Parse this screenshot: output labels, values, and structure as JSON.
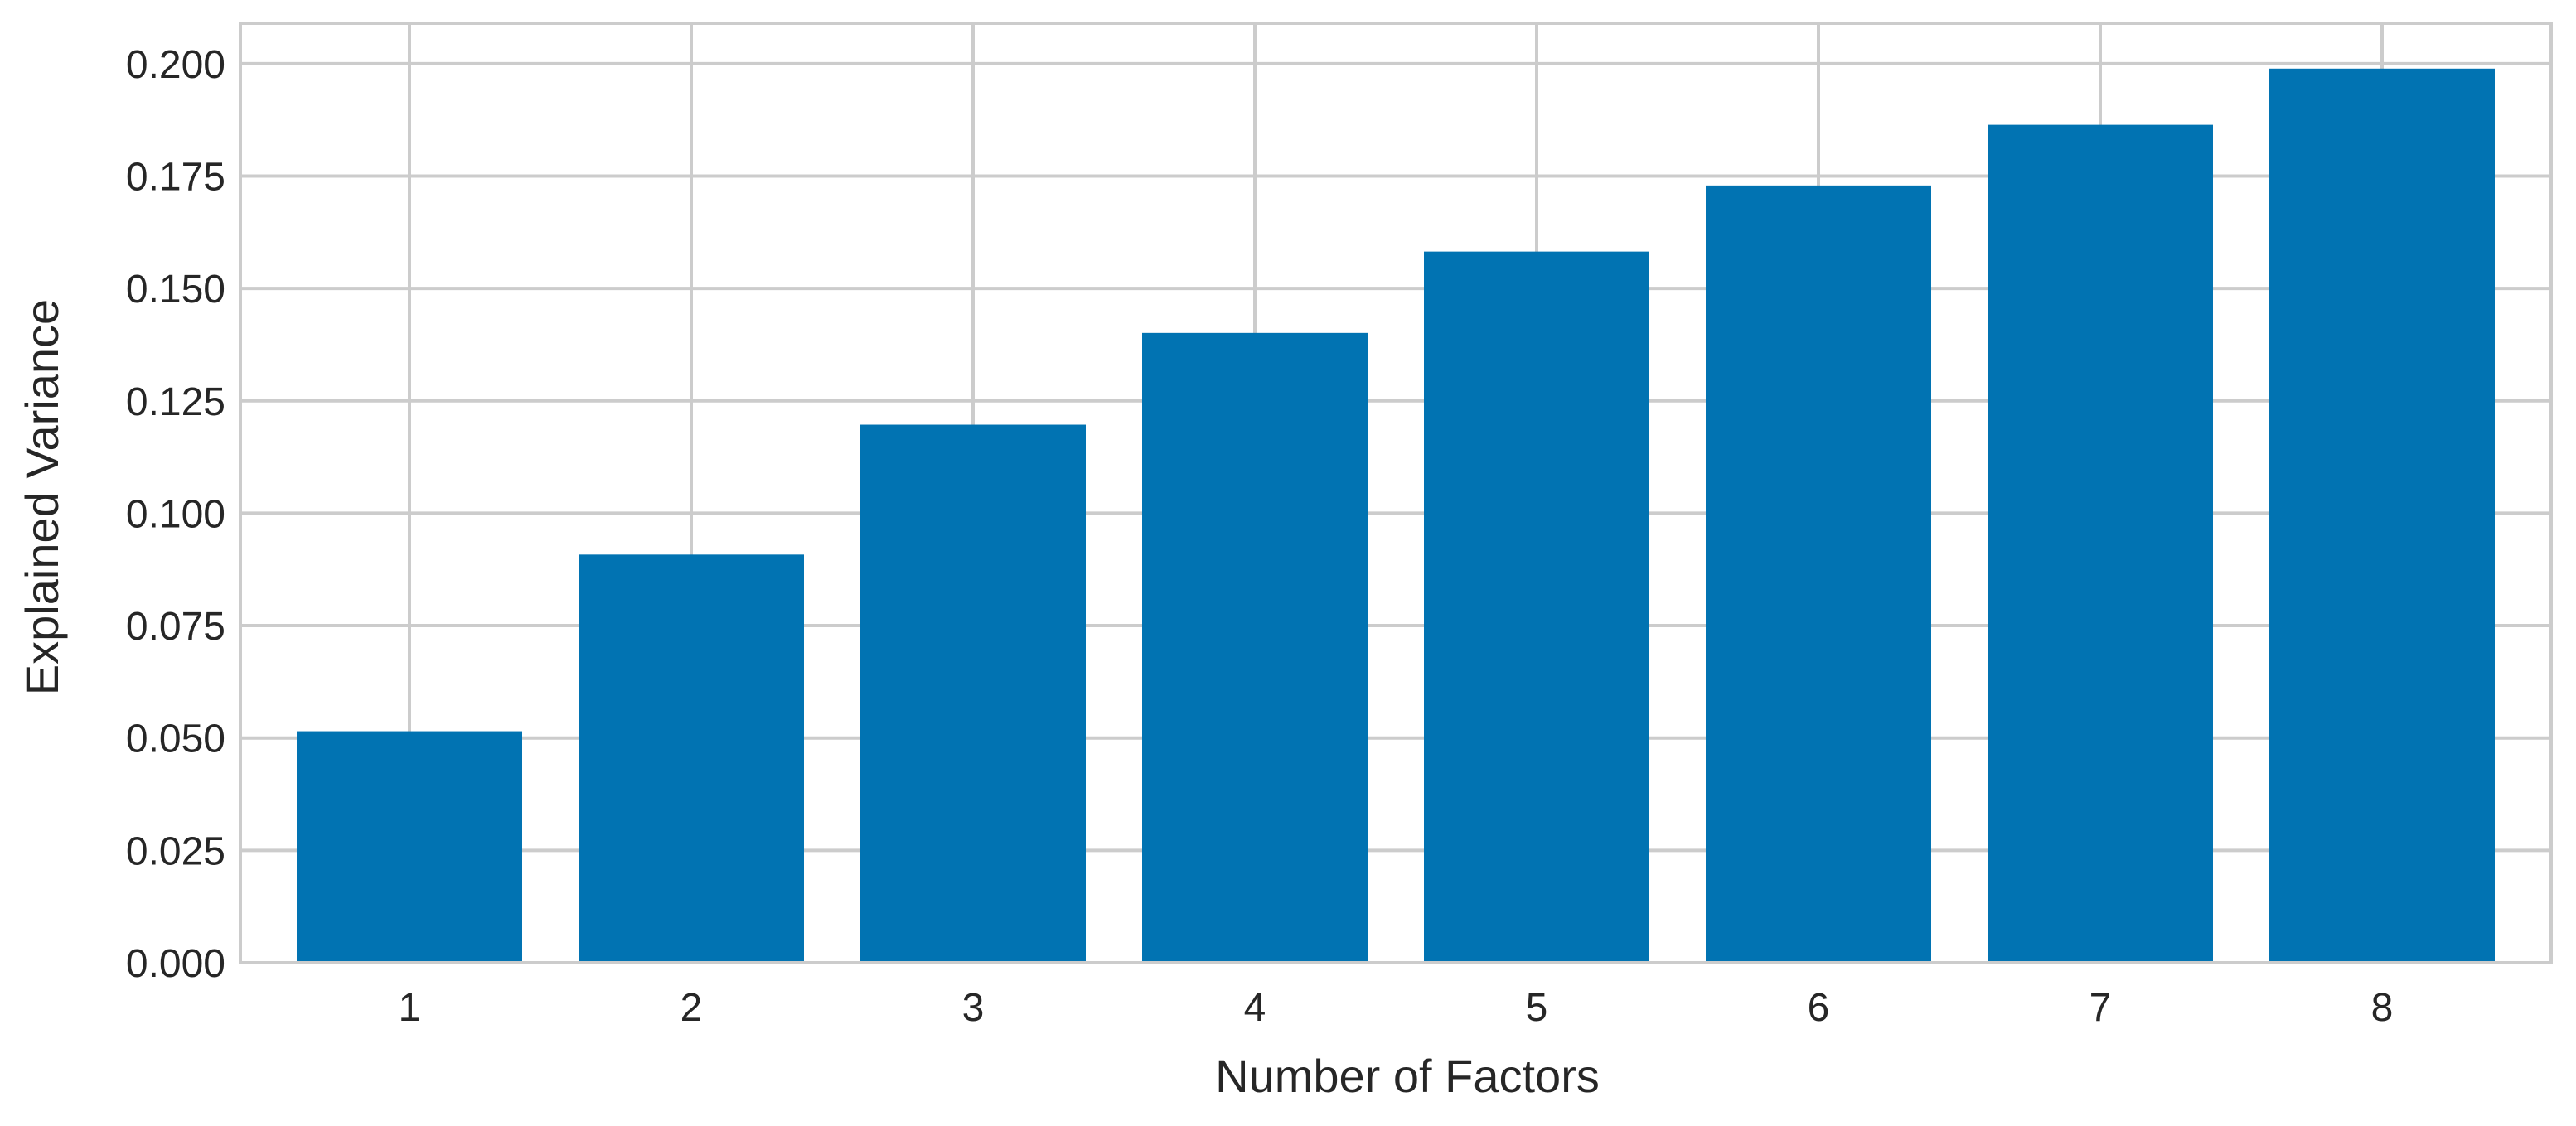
{
  "chart_data": {
    "type": "bar",
    "title": "",
    "xlabel": "Number of Factors",
    "ylabel": "Explained Variance",
    "categories": [
      "1",
      "2",
      "3",
      "4",
      "5",
      "6",
      "7",
      "8"
    ],
    "values": [
      0.0515,
      0.0908,
      0.1197,
      0.1401,
      0.1582,
      0.1729,
      0.1864,
      0.1989
    ],
    "ylim": [
      0,
      0.209
    ],
    "yticks": [
      "0.000",
      "0.025",
      "0.050",
      "0.075",
      "0.100",
      "0.125",
      "0.150",
      "0.175",
      "0.200"
    ],
    "grid": true,
    "legend": "none",
    "bar_color": "#0173b2",
    "grid_color": "#cccccc",
    "frame_color": "#cccccc",
    "text_color": "#262626"
  }
}
